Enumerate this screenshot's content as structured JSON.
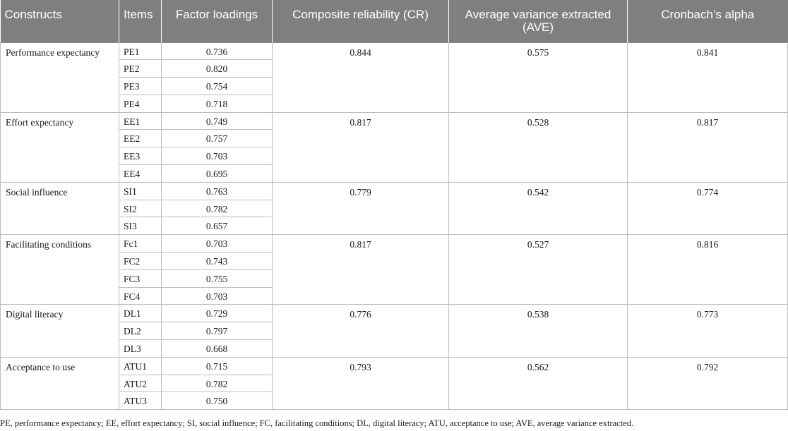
{
  "table": {
    "headers": [
      "Constructs",
      "Items",
      "Factor loadings",
      "Composite reliability (CR)",
      "Average variance extracted (AVE)",
      "Cronbach’s alpha"
    ],
    "groups": [
      {
        "construct": "Performance expectancy",
        "cr": "0.844",
        "ave": "0.575",
        "alpha": "0.841",
        "items": [
          {
            "item": "PE1",
            "loading": "0.736"
          },
          {
            "item": "PE2",
            "loading": "0.820"
          },
          {
            "item": "PE3",
            "loading": "0.754"
          },
          {
            "item": "PE4",
            "loading": "0.718"
          }
        ]
      },
      {
        "construct": "Effort expectancy",
        "cr": "0.817",
        "ave": "0.528",
        "alpha": "0.817",
        "items": [
          {
            "item": "EE1",
            "loading": "0.749"
          },
          {
            "item": "EE2",
            "loading": "0.757"
          },
          {
            "item": "EE3",
            "loading": "0.703"
          },
          {
            "item": "EE4",
            "loading": "0.695"
          }
        ]
      },
      {
        "construct": "Social influence",
        "cr": "0.779",
        "ave": "0.542",
        "alpha": "0.774",
        "items": [
          {
            "item": "SI1",
            "loading": "0.763"
          },
          {
            "item": "SI2",
            "loading": "0.782"
          },
          {
            "item": "SI3",
            "loading": "0.657"
          }
        ]
      },
      {
        "construct": "Facilitating conditions",
        "cr": "0.817",
        "ave": "0.527",
        "alpha": "0.816",
        "items": [
          {
            "item": "Fc1",
            "loading": "0.703"
          },
          {
            "item": "FC2",
            "loading": "0.743"
          },
          {
            "item": "FC3",
            "loading": "0.755"
          },
          {
            "item": "FC4",
            "loading": "0.703"
          }
        ]
      },
      {
        "construct": "Digital literacy",
        "cr": "0.776",
        "ave": "0.538",
        "alpha": "0.773",
        "items": [
          {
            "item": "DL1",
            "loading": "0.729"
          },
          {
            "item": "DL2",
            "loading": "0.797"
          },
          {
            "item": "DL3",
            "loading": "0.668"
          }
        ]
      },
      {
        "construct": "Acceptance to use",
        "cr": "0.793",
        "ave": "0.562",
        "alpha": "0.792",
        "items": [
          {
            "item": "ATU1",
            "loading": "0.715"
          },
          {
            "item": "ATU2",
            "loading": "0.782"
          },
          {
            "item": "ATU3",
            "loading": "0.750"
          }
        ]
      }
    ]
  },
  "footnote": "PE, performance expectancy; EE, effort expectancy; SI, social influence; FC, facilitating conditions; DL, digital literacy; ATU, acceptance to use; AVE, average variance extracted."
}
